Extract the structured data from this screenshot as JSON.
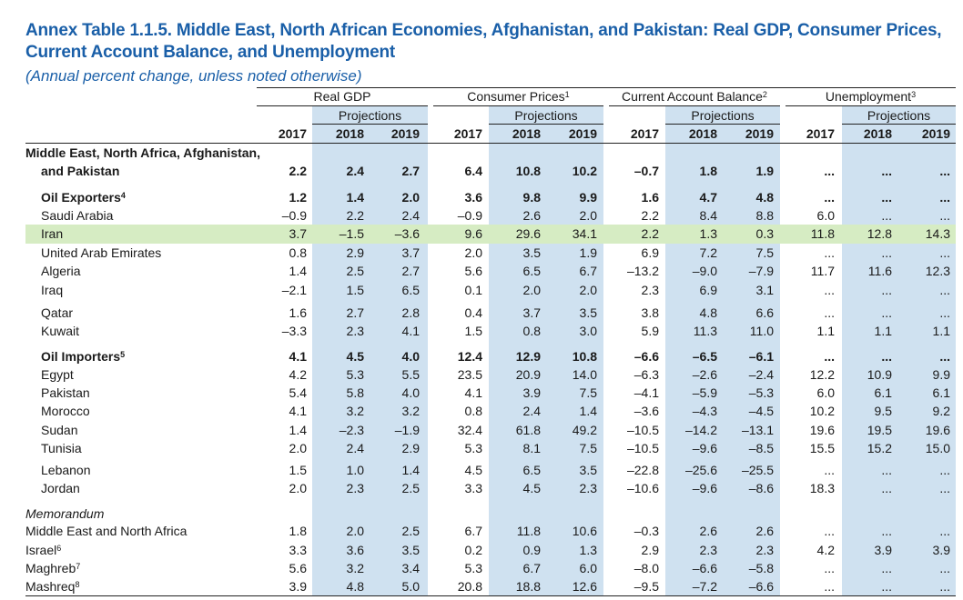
{
  "title": "Annex Table 1.1.5. Middle East, North African Economies, Afghanistan, and Pakistan: Real GDP, Consumer Prices, Current Account Balance, and Unemployment",
  "subtitle": "(Annual percent change, unless noted otherwise)",
  "colors": {
    "title": "#1a5fa8",
    "projection_shade": "#cfe1f0",
    "highlight_row": "#d6ecc3"
  },
  "groups": [
    {
      "label": "Real GDP",
      "note": ""
    },
    {
      "label": "Consumer Prices",
      "note": "1"
    },
    {
      "label": "Current Account Balance",
      "note": "2"
    },
    {
      "label": "Unemployment",
      "note": "3"
    }
  ],
  "projections_label": "Projections",
  "years": [
    "2017",
    "2018",
    "2019"
  ],
  "rows": [
    {
      "label": "Middle East, North Africa, Afghanistan,",
      "note": "",
      "bold": true,
      "values": []
    },
    {
      "label": "and Pakistan",
      "note": "",
      "bold": true,
      "indent": true,
      "values": [
        "2.2",
        "2.4",
        "2.7",
        "6.4",
        "10.8",
        "10.2",
        "–0.7",
        "1.8",
        "1.9",
        "...",
        "...",
        "..."
      ]
    },
    {
      "label": "Oil Exporters",
      "note": "4",
      "bold": true,
      "indent": true,
      "values": [
        "1.2",
        "1.4",
        "2.0",
        "3.6",
        "9.8",
        "9.9",
        "1.6",
        "4.7",
        "4.8",
        "...",
        "...",
        "..."
      ]
    },
    {
      "label": "Saudi Arabia",
      "note": "",
      "bold": false,
      "indent": true,
      "values": [
        "–0.9",
        "2.2",
        "2.4",
        "–0.9",
        "2.6",
        "2.0",
        "2.2",
        "8.4",
        "8.8",
        "6.0",
        "...",
        "..."
      ]
    },
    {
      "label": "Iran",
      "note": "",
      "bold": false,
      "indent": true,
      "highlight": true,
      "values": [
        "3.7",
        "–1.5",
        "–3.6",
        "9.6",
        "29.6",
        "34.1",
        "2.2",
        "1.3",
        "0.3",
        "11.8",
        "12.8",
        "14.3"
      ]
    },
    {
      "label": "United Arab Emirates",
      "note": "",
      "bold": false,
      "indent": true,
      "values": [
        "0.8",
        "2.9",
        "3.7",
        "2.0",
        "3.5",
        "1.9",
        "6.9",
        "7.2",
        "7.5",
        "...",
        "...",
        "..."
      ]
    },
    {
      "label": "Algeria",
      "note": "",
      "bold": false,
      "indent": true,
      "values": [
        "1.4",
        "2.5",
        "2.7",
        "5.6",
        "6.5",
        "6.7",
        "–13.2",
        "–9.0",
        "–7.9",
        "11.7",
        "11.6",
        "12.3"
      ]
    },
    {
      "label": "Iraq",
      "note": "",
      "bold": false,
      "indent": true,
      "values": [
        "–2.1",
        "1.5",
        "6.5",
        "0.1",
        "2.0",
        "2.0",
        "2.3",
        "6.9",
        "3.1",
        "...",
        "...",
        "..."
      ]
    },
    {
      "label": "Qatar",
      "note": "",
      "bold": false,
      "indent": true,
      "values": [
        "1.6",
        "2.7",
        "2.8",
        "0.4",
        "3.7",
        "3.5",
        "3.8",
        "4.8",
        "6.6",
        "...",
        "...",
        "..."
      ]
    },
    {
      "label": "Kuwait",
      "note": "",
      "bold": false,
      "indent": true,
      "values": [
        "–3.3",
        "2.3",
        "4.1",
        "1.5",
        "0.8",
        "3.0",
        "5.9",
        "11.3",
        "11.0",
        "1.1",
        "1.1",
        "1.1"
      ]
    },
    {
      "label": "Oil Importers",
      "note": "5",
      "bold": true,
      "indent": true,
      "values": [
        "4.1",
        "4.5",
        "4.0",
        "12.4",
        "12.9",
        "10.8",
        "–6.6",
        "–6.5",
        "–6.1",
        "...",
        "...",
        "..."
      ]
    },
    {
      "label": "Egypt",
      "note": "",
      "bold": false,
      "indent": true,
      "values": [
        "4.2",
        "5.3",
        "5.5",
        "23.5",
        "20.9",
        "14.0",
        "–6.3",
        "–2.6",
        "–2.4",
        "12.2",
        "10.9",
        "9.9"
      ]
    },
    {
      "label": "Pakistan",
      "note": "",
      "bold": false,
      "indent": true,
      "values": [
        "5.4",
        "5.8",
        "4.0",
        "4.1",
        "3.9",
        "7.5",
        "–4.1",
        "–5.9",
        "–5.3",
        "6.0",
        "6.1",
        "6.1"
      ]
    },
    {
      "label": "Morocco",
      "note": "",
      "bold": false,
      "indent": true,
      "values": [
        "4.1",
        "3.2",
        "3.2",
        "0.8",
        "2.4",
        "1.4",
        "–3.6",
        "–4.3",
        "–4.5",
        "10.2",
        "9.5",
        "9.2"
      ]
    },
    {
      "label": "Sudan",
      "note": "",
      "bold": false,
      "indent": true,
      "values": [
        "1.4",
        "–2.3",
        "–1.9",
        "32.4",
        "61.8",
        "49.2",
        "–10.5",
        "–14.2",
        "–13.1",
        "19.6",
        "19.5",
        "19.6"
      ]
    },
    {
      "label": "Tunisia",
      "note": "",
      "bold": false,
      "indent": true,
      "values": [
        "2.0",
        "2.4",
        "2.9",
        "5.3",
        "8.1",
        "7.5",
        "–10.5",
        "–9.6",
        "–8.5",
        "15.5",
        "15.2",
        "15.0"
      ]
    },
    {
      "label": "Lebanon",
      "note": "",
      "bold": false,
      "indent": true,
      "values": [
        "1.5",
        "1.0",
        "1.4",
        "4.5",
        "6.5",
        "3.5",
        "–22.8",
        "–25.6",
        "–25.5",
        "...",
        "...",
        "..."
      ]
    },
    {
      "label": "Jordan",
      "note": "",
      "bold": false,
      "indent": true,
      "values": [
        "2.0",
        "2.3",
        "2.5",
        "3.3",
        "4.5",
        "2.3",
        "–10.6",
        "–9.6",
        "–8.6",
        "18.3",
        "...",
        "..."
      ]
    },
    {
      "label": "Memorandum",
      "note": "",
      "bold": false,
      "italic": true,
      "values": []
    },
    {
      "label": "Middle East and North Africa",
      "note": "",
      "bold": false,
      "values": [
        "1.8",
        "2.0",
        "2.5",
        "6.7",
        "11.8",
        "10.6",
        "–0.3",
        "2.6",
        "2.6",
        "...",
        "...",
        "..."
      ]
    },
    {
      "label": "Israel",
      "note": "6",
      "bold": false,
      "values": [
        "3.3",
        "3.6",
        "3.5",
        "0.2",
        "0.9",
        "1.3",
        "2.9",
        "2.3",
        "2.3",
        "4.2",
        "3.9",
        "3.9"
      ]
    },
    {
      "label": "Maghreb",
      "note": "7",
      "bold": false,
      "values": [
        "5.6",
        "3.2",
        "3.4",
        "5.3",
        "6.7",
        "6.0",
        "–8.0",
        "–6.6",
        "–5.8",
        "...",
        "...",
        "..."
      ]
    },
    {
      "label": "Mashreq",
      "note": "8",
      "bold": false,
      "values": [
        "3.9",
        "4.8",
        "5.0",
        "20.8",
        "18.8",
        "12.6",
        "–9.5",
        "–7.2",
        "–6.6",
        "...",
        "...",
        "..."
      ]
    }
  ]
}
